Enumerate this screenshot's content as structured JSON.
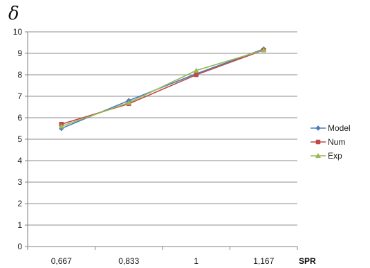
{
  "chart_data": {
    "type": "line",
    "title": "",
    "xlabel": "SPR",
    "ylabel": "δ",
    "categories": [
      "0,667",
      "0,833",
      "1",
      "1,167"
    ],
    "ylim": [
      0,
      10
    ],
    "yticks": [
      "0",
      "1",
      "2",
      "3",
      "4",
      "5",
      "6",
      "7",
      "8",
      "9",
      "10"
    ],
    "grid": "horizontal",
    "legend_position": "right",
    "series": [
      {
        "name": "Model",
        "values": [
          5.5,
          6.8,
          8.05,
          9.2
        ],
        "color": "#4a7ebb",
        "marker": "diamond"
      },
      {
        "name": "Num",
        "values": [
          5.7,
          6.65,
          8.0,
          9.15
        ],
        "color": "#be4b48",
        "marker": "square"
      },
      {
        "name": "Exp",
        "values": [
          5.6,
          6.7,
          8.2,
          9.15
        ],
        "color": "#98b954",
        "marker": "triangle"
      }
    ]
  }
}
